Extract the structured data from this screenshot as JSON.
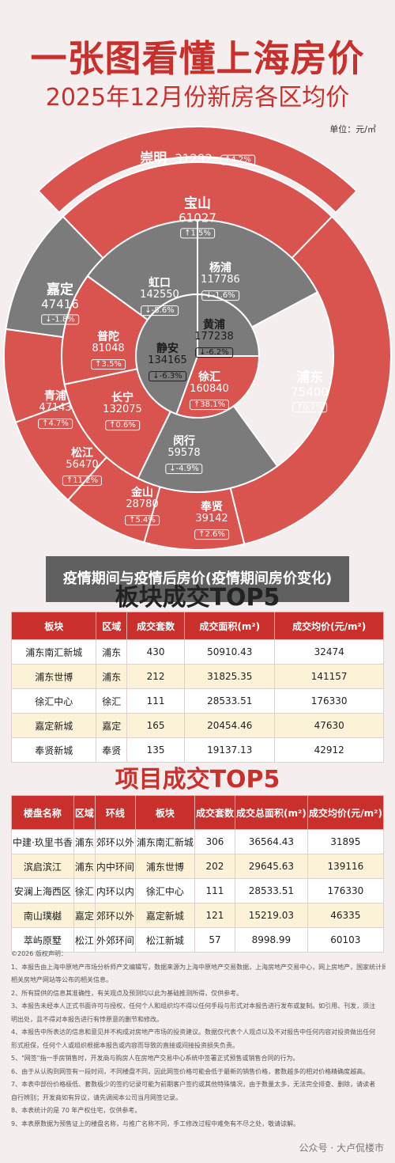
{
  "title": "一张图看懂上海房价",
  "subtitle": "2025年12月份新房各区均价",
  "unit": "单位：元/㎡",
  "districts": [
    {
      "name": "崇明",
      "price": "31292",
      "change": "↑4.2%",
      "ring": "top"
    },
    {
      "name": "宝山",
      "price": "61027",
      "change": "↑1.5%",
      "ring": "outer"
    },
    {
      "name": "浦东",
      "price": "75400",
      "change": "↑0.7%",
      "ring": "outer"
    },
    {
      "name": "奉贤",
      "price": "39142",
      "change": "↑2.6%",
      "ring": "outer"
    },
    {
      "name": "金山",
      "price": "28780",
      "change": "↑5.4%",
      "ring": "outer"
    },
    {
      "name": "松江",
      "price": "56470",
      "change": "↑11.2%",
      "ring": "outer"
    },
    {
      "name": "青浦",
      "price": "47143",
      "change": "↑4.7%",
      "ring": "outer"
    },
    {
      "name": "嘉定",
      "price": "47416",
      "change": "↓-1.8%",
      "ring": "outer"
    },
    {
      "name": "杨浦",
      "price": "117786",
      "change": "↓-1.6%",
      "ring": "middle"
    },
    {
      "name": "闵行",
      "price": "59578",
      "change": "↓-4.9%",
      "ring": "middle"
    },
    {
      "name": "长宁",
      "price": "132075",
      "change": "↑0.6%",
      "ring": "middle"
    },
    {
      "name": "普陀",
      "price": "81048",
      "change": "↑3.5%",
      "ring": "middle"
    },
    {
      "name": "虹口",
      "price": "142550",
      "change": "↓-8.6%",
      "ring": "middle"
    },
    {
      "name": "黄浦",
      "price": "177238",
      "change": "↓-6.2%",
      "ring": "inner"
    },
    {
      "name": "徐汇",
      "price": "160840",
      "change": "↑38.1%",
      "ring": "inner"
    },
    {
      "name": "静安",
      "price": "134165",
      "change": "↓-6.3%",
      "ring": "inner"
    }
  ],
  "banner": "疫情期间与疫情后房价(疫情期间房价变化)",
  "table1": {
    "title": "板块成交TOP5",
    "headers": [
      "板块",
      "区域",
      "成交套数",
      "成交面积(m²)",
      "成交均价(元/m²)"
    ],
    "rows": [
      [
        "浦东南汇新城",
        "浦东",
        "430",
        "50910.43",
        "32474"
      ],
      [
        "浦东世博",
        "浦东",
        "212",
        "31825.35",
        "141157"
      ],
      [
        "徐汇中心",
        "徐汇",
        "111",
        "28533.51",
        "176330"
      ],
      [
        "嘉定新城",
        "嘉定",
        "165",
        "20454.46",
        "47630"
      ],
      [
        "奉贤新城",
        "奉贤",
        "135",
        "19137.13",
        "42912"
      ]
    ]
  },
  "table2": {
    "title": "项目成交TOP5",
    "headers": [
      "楼盘名称",
      "区域",
      "环线",
      "板块",
      "成交套数",
      "成交总面积(m²)",
      "成交均价(元/m²)"
    ],
    "rows": [
      [
        "中建·玖里书香",
        "浦东",
        "郊环以外",
        "浦东南汇新城",
        "306",
        "36564.43",
        "31895"
      ],
      [
        "滨启滨江",
        "浦东",
        "内中环间",
        "浦东世博",
        "202",
        "29645.63",
        "139116"
      ],
      [
        "安澜上海西区",
        "徐汇",
        "内环以内",
        "徐汇中心",
        "111",
        "28533.51",
        "176330"
      ],
      [
        "南山璞樾",
        "嘉定",
        "郊环以外",
        "嘉定新城",
        "121",
        "15219.03",
        "46335"
      ],
      [
        "萃屿原墅",
        "松江",
        "外郊环间",
        "松江新城",
        "57",
        "8998.99",
        "60103"
      ]
    ]
  },
  "disclaimer": [
    "©2026 版权声明：",
    "1、本报告由上海中原地产市场分析师产文编辑写，数据来源为上海中原地产交易数据，上海房地产交易中心，网上房地产，国家统计局、",
    "相关房地产网站等公布的相关信息。",
    "2、所有提供的信息其准确性，有关观点及预测均以此为基础推测所得，仅供参考。",
    "3、本报告未经本人正式书面许可与授权，任何个人和组织均不得以任何手段与形式对本报告进行发布或复制。如引用、刊发，须注",
    "明出处，且不得对本报告进行有悖原意的删节和修改。",
    "4、本报告中所表达的信息和意见并不构成对房地产市场的投资建议。数据仅代表个人观点以及不对报告中任何内容对投资做出任何",
    "形式担保，任何个人或组织根据本报告或内容而导致的直接或间接投资损失负责。",
    "5、\"网签\"指一手房销售时，开发商与购房人在房地产交易中心系统中签署正式预售或销售合同的行为。",
    "6、由于从认购到网签有一段时间，不同楼盘不同，因此网签价格可能会低于最新的销售价格，套数越多的相对价格精确度越高。",
    "7、本表中部份价格极低、套数极少的签约记录可能为前期客户签约或其他特殊情况，由于数量太多，无法完全排查、删除，请读者",
    "自行辨别；开发商如有异议，请先调阅本公司当月网签记录。",
    "8、本表统计的是 70 年产权住宅，仅供参考。",
    "9、本表原数据为预售证上的楼盘名称，与推广名称不同，手工修改过程中难免有不尽之处，敬请谅解。"
  ],
  "watermark": "公众号 · 大卢侃楼市",
  "colors": {
    "red": "#d9534f",
    "gray": "#7b7b7b",
    "light": "#f3e7e7",
    "accent": "#c9302c"
  }
}
